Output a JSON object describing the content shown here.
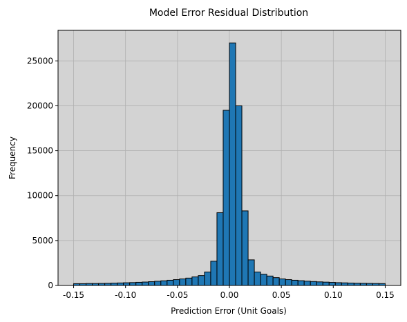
{
  "chart_data": {
    "type": "bar",
    "title": "Model Error Residual Distribution",
    "xlabel": "Prediction Error (Unit Goals)",
    "ylabel": "Frequency",
    "xlim": [
      -0.165,
      0.165
    ],
    "ylim": [
      0,
      28400
    ],
    "bin_start": -0.15,
    "bin_width": 0.006,
    "x_ticks": [
      "-0.15",
      "-0.10",
      "-0.05",
      "0.00",
      "0.05",
      "0.10",
      "0.15"
    ],
    "x_tick_values": [
      -0.15,
      -0.1,
      -0.05,
      0.0,
      0.05,
      0.1,
      0.15
    ],
    "y_ticks": [
      "0",
      "5000",
      "10000",
      "15000",
      "20000",
      "25000"
    ],
    "y_tick_values": [
      0,
      5000,
      10000,
      15000,
      20000,
      25000
    ],
    "grid": true,
    "values": [
      200,
      200,
      220,
      220,
      230,
      240,
      260,
      280,
      300,
      320,
      350,
      380,
      420,
      470,
      520,
      580,
      650,
      730,
      820,
      950,
      1100,
      1500,
      2700,
      8100,
      19500,
      27000,
      20000,
      8300,
      2850,
      1500,
      1250,
      1050,
      870,
      730,
      650,
      580,
      530,
      480,
      440,
      400,
      370,
      340,
      310,
      290,
      270,
      250,
      240,
      230,
      220,
      210
    ],
    "colors": {
      "bar_fill": "#1f77b4",
      "bar_edge": "#000000",
      "plot_background": "#d3d3d3",
      "grid": "#b0b0b0"
    }
  }
}
